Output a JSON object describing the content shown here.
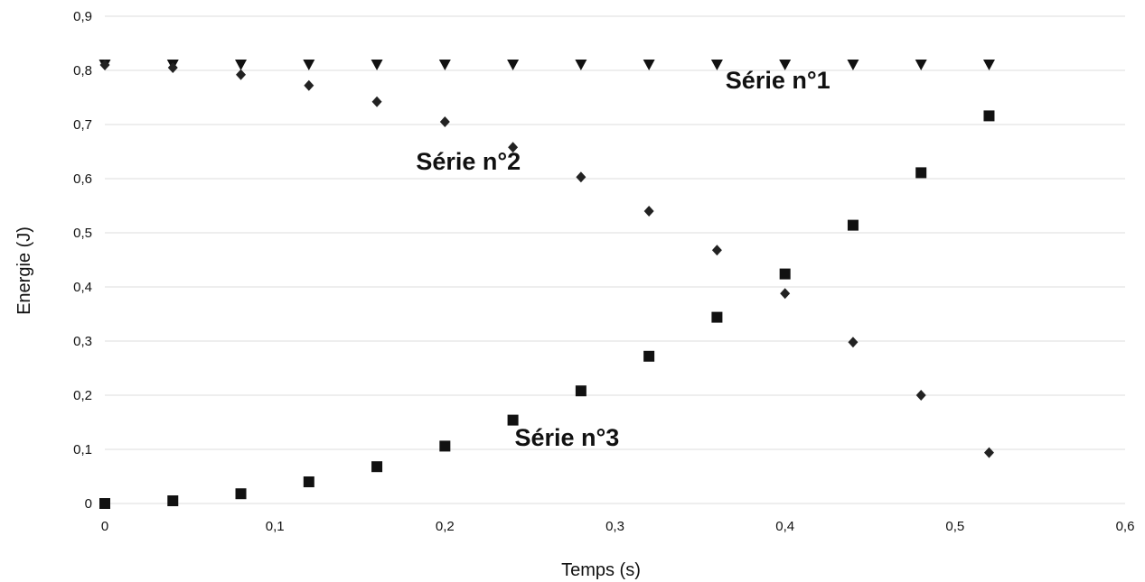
{
  "chart_data": {
    "type": "scatter",
    "xlabel": "Temps (s)",
    "ylabel": "Energie (J)",
    "xlim": [
      0,
      0.6
    ],
    "ylim": [
      0,
      0.9
    ],
    "x_ticks": [
      "0",
      "0,1",
      "0,2",
      "0,3",
      "0,4",
      "0,5",
      "0,6"
    ],
    "y_ticks": [
      "0",
      "0,1",
      "0,2",
      "0,3",
      "0,4",
      "0,5",
      "0,6",
      "0,7",
      "0,8",
      "0,9"
    ],
    "grid": "horizontal",
    "legend": "none",
    "x": [
      0,
      0.04,
      0.08,
      0.12,
      0.16,
      0.2,
      0.24,
      0.28,
      0.32,
      0.36,
      0.4,
      0.44,
      0.48,
      0.52
    ],
    "series": [
      {
        "marker": "triangle-down",
        "color": "#111111",
        "values": [
          0.81,
          0.81,
          0.81,
          0.81,
          0.81,
          0.81,
          0.81,
          0.81,
          0.81,
          0.81,
          0.81,
          0.81,
          0.81,
          0.81
        ]
      },
      {
        "marker": "diamond",
        "color": "#222222",
        "values": [
          0.81,
          0.805,
          0.792,
          0.772,
          0.742,
          0.705,
          0.658,
          0.603,
          0.54,
          0.468,
          0.388,
          0.298,
          0.2,
          0.094
        ]
      },
      {
        "marker": "square",
        "color": "#111111",
        "values": [
          0,
          0.005,
          0.018,
          0.04,
          0.068,
          0.106,
          0.154,
          0.208,
          0.272,
          0.344,
          0.424,
          0.514,
          0.611,
          0.716
        ]
      }
    ],
    "annotations": [
      {
        "text": "Série n°1",
        "x": 0.365,
        "y": 0.767
      },
      {
        "text": "Série n°2",
        "x": 0.183,
        "y": 0.617
      },
      {
        "text": "Série n°3",
        "x": 0.241,
        "y": 0.107
      }
    ]
  }
}
